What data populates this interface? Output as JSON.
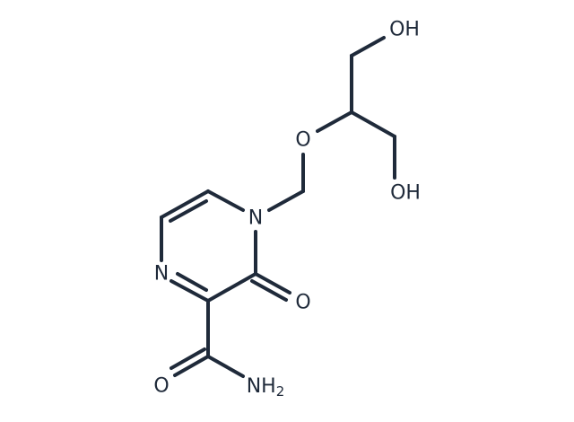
{
  "atoms": [
    {
      "label": "OH"
    },
    {
      "label": "OH"
    },
    {
      "label": "O"
    },
    {
      "label": "N"
    },
    {
      "label": "N"
    },
    {
      "label": "O"
    },
    {
      "label": "O"
    },
    {
      "label": "NH",
      "subscript": "2"
    }
  ]
}
